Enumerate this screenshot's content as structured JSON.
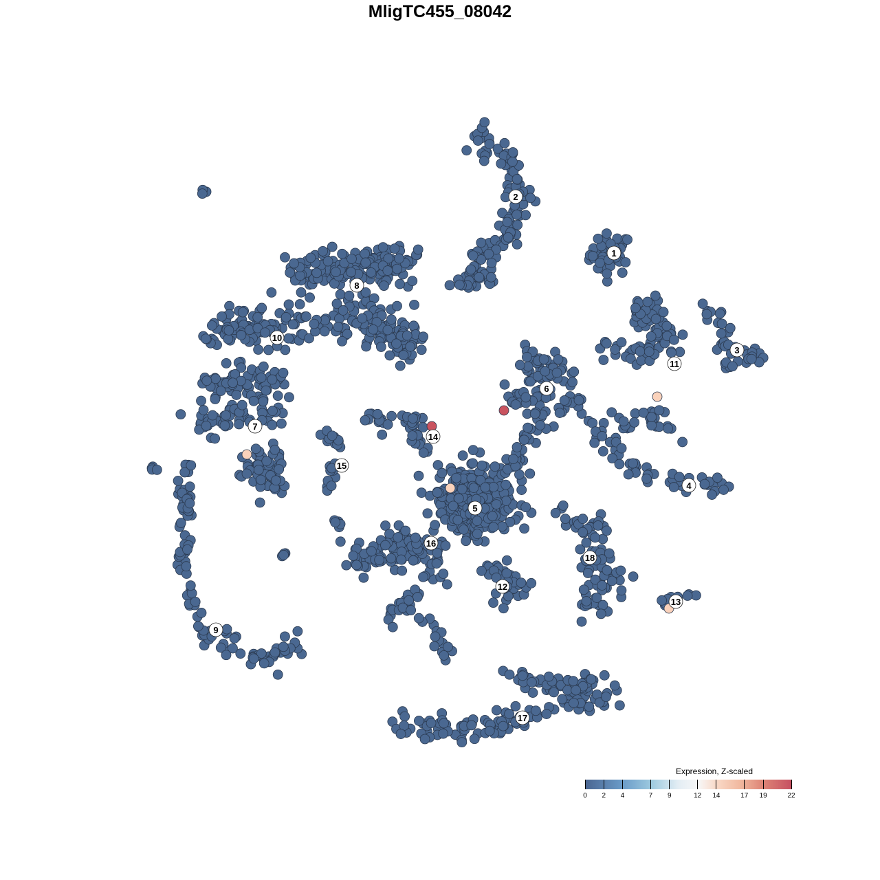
{
  "chart_data": {
    "type": "scatter",
    "title": "MligTC455_08042",
    "xlabel": "",
    "ylabel": "",
    "grid": false,
    "axes_visible": false,
    "base_color": "#4a6891",
    "outline_color": "#2b3a50",
    "colorbar": {
      "title": "Expression, Z-scaled",
      "ticks": [
        0,
        2,
        4,
        7,
        9,
        12,
        14,
        17,
        19,
        22
      ],
      "range": [
        0,
        22
      ],
      "colors": [
        "#4a6591",
        "#6a9bc8",
        "#9cc9df",
        "#e3edf4",
        "#f7f7f7",
        "#f9d8c6",
        "#de8576",
        "#c65062"
      ],
      "placement": "bottom-right"
    },
    "clusters": [
      {
        "label": "1",
        "label_pos": [
          25.3,
          27.2
        ],
        "shapes": [
          {
            "path": [
              [
                24.8,
                27
              ]
            ],
            "spread": 2.5,
            "n": 45
          }
        ]
      },
      {
        "label": "2",
        "label_pos": [
          11,
          35.4
        ],
        "shapes": [
          {
            "path": [
              [
                5,
                44.5
              ],
              [
                10,
                41
              ],
              [
                12,
                35
              ],
              [
                10,
                30
              ],
              [
                6,
                26
              ],
              [
                5,
                23
              ]
            ],
            "spread": 1.6,
            "n": 120
          },
          {
            "path": [
              [
                2,
                22.5
              ],
              [
                7.5,
                23.5
              ]
            ],
            "spread": 0.8,
            "n": 15
          }
        ]
      },
      {
        "label": "3",
        "label_pos": [
          43.2,
          13.1
        ],
        "shapes": [
          {
            "path": [
              [
                38.5,
                19.5
              ],
              [
                41,
                17
              ],
              [
                42,
                13
              ],
              [
                47,
                12
              ]
            ],
            "spread": 1,
            "n": 35
          },
          {
            "path": [
              [
                41,
                10.5
              ],
              [
                46,
                12
              ]
            ],
            "spread": 0.8,
            "n": 10
          }
        ]
      },
      {
        "label": "4",
        "label_pos": [
          36.2,
          -6.6
        ],
        "shapes": [
          {
            "path": [
              [
                21.5,
                3.5
              ],
              [
                24,
                0
              ],
              [
                28,
                -4
              ],
              [
                34,
                -6
              ],
              [
                42,
                -7
              ]
            ],
            "spread": 1,
            "n": 55
          }
        ]
      },
      {
        "label": "5",
        "label_pos": [
          5.1,
          -9.9
        ],
        "shapes": [
          {
            "path": [
              [
                5,
                -9
              ]
            ],
            "spread": 4.5,
            "n": 320
          },
          {
            "path": [
              [
                10,
                -4
              ],
              [
                15,
                4
              ]
            ],
            "spread": 1.5,
            "n": 35
          }
        ]
      },
      {
        "label": "6",
        "label_pos": [
          15.5,
          7.5
        ],
        "shapes": [
          {
            "path": [
              [
                12,
                12
              ],
              [
                18,
                9
              ]
            ],
            "spread": 2,
            "n": 50
          },
          {
            "path": [
              [
                9,
                6
              ],
              [
                20,
                5
              ]
            ],
            "spread": 1.5,
            "n": 35
          }
        ]
      },
      {
        "label": "7",
        "label_pos": [
          -26.9,
          2
        ],
        "shapes": [
          {
            "path": [
              [
                -25.5,
                -3
              ],
              [
                -25.5,
                -6
              ]
            ],
            "spread": 2.5,
            "n": 70
          }
        ]
      },
      {
        "label": "8",
        "label_pos": [
          -12.1,
          22.5
        ],
        "shapes": [
          {
            "path": [
              [
                -21,
                24
              ],
              [
                -4,
                26
              ]
            ],
            "spread": 2.5,
            "n": 160
          },
          {
            "path": [
              [
                -14,
                19
              ],
              [
                -4,
                14
              ]
            ],
            "spread": 2.5,
            "n": 120
          }
        ]
      },
      {
        "label": "9",
        "label_pos": [
          -32.6,
          -27.6
        ],
        "shapes": [
          {
            "path": [
              [
                -35,
                -27
              ],
              [
                -30,
                -31
              ],
              [
                -24,
                -32
              ],
              [
                -21,
                -28.5
              ]
            ],
            "spread": 1.5,
            "n": 55
          }
        ]
      },
      {
        "label": "10",
        "label_pos": [
          -23.7,
          14.9
        ],
        "shapes": [
          {
            "path": [
              [
                -33,
                15
              ],
              [
                -22,
                17
              ],
              [
                -17,
                16
              ]
            ],
            "spread": 2.5,
            "n": 100
          },
          {
            "path": [
              [
                -34,
                8
              ],
              [
                -24,
                8
              ]
            ],
            "spread": 2.5,
            "n": 70
          },
          {
            "path": [
              [
                -35,
                2
              ],
              [
                -24,
                4
              ]
            ],
            "spread": 1.8,
            "n": 50
          },
          {
            "path": [
              [
                -37,
                -3
              ],
              [
                -37,
                -11
              ],
              [
                -37,
                -21
              ],
              [
                -35,
                -26
              ]
            ],
            "spread": 0.9,
            "n": 60
          }
        ]
      },
      {
        "label": "11",
        "label_pos": [
          34.1,
          11.1
        ],
        "shapes": [
          {
            "path": [
              [
                29,
                20
              ],
              [
                32,
                17
              ],
              [
                32,
                13
              ]
            ],
            "spread": 2,
            "n": 60
          },
          {
            "path": [
              [
                24,
                13.5
              ],
              [
                31,
                12.5
              ]
            ],
            "spread": 1.3,
            "n": 25
          },
          {
            "path": [
              [
                30,
                4
              ],
              [
                35,
                1
              ]
            ],
            "spread": 1.3,
            "n": 20
          },
          {
            "path": [
              [
                27,
                3
              ],
              [
                27,
                2
              ]
            ],
            "spread": 1,
            "n": 8
          }
        ]
      },
      {
        "label": "12",
        "label_pos": [
          9.1,
          -21.3
        ],
        "shapes": [
          {
            "path": [
              [
                6,
                -18
              ],
              [
                12,
                -21
              ],
              [
                8,
                -23.5
              ]
            ],
            "spread": 1.5,
            "n": 40
          }
        ]
      },
      {
        "label": "13",
        "label_pos": [
          34.3,
          -23.5
        ],
        "shapes": [
          {
            "path": [
              [
                31.5,
                -24
              ],
              [
                37,
                -22
              ]
            ],
            "spread": 0.7,
            "n": 10
          }
        ]
      },
      {
        "label": "14",
        "label_pos": [
          -1,
          0.5
        ],
        "shapes": [
          {
            "path": [
              [
                -11,
                2.8
              ],
              [
                -3,
                3
              ],
              [
                -3,
                -1
              ]
            ],
            "spread": 1.3,
            "n": 40
          }
        ]
      },
      {
        "label": "15",
        "label_pos": [
          -14.3,
          -3.7
        ],
        "shapes": [
          {
            "path": [
              [
                -18,
                1.5
              ],
              [
                -14.5,
                -1
              ],
              [
                -16.5,
                -7
              ]
            ],
            "spread": 0.8,
            "n": 25
          }
        ]
      },
      {
        "label": "16",
        "label_pos": [
          -1.3,
          -15
        ],
        "shapes": [
          {
            "path": [
              [
                -12,
                -17
              ],
              [
                -4,
                -15
              ],
              [
                0,
                -19
              ]
            ],
            "spread": 2.2,
            "n": 110
          },
          {
            "path": [
              [
                -4,
                -22
              ],
              [
                -8,
                -27
              ]
            ],
            "spread": 1,
            "n": 20
          },
          {
            "path": [
              [
                -2,
                -26
              ],
              [
                1,
                -31
              ]
            ],
            "spread": 1,
            "n": 15
          }
        ]
      },
      {
        "label": "17",
        "label_pos": [
          12,
          -40.4
        ],
        "shapes": [
          {
            "path": [
              [
                -6,
                -42
              ],
              [
                6,
                -42
              ],
              [
                16,
                -39
              ],
              [
                25,
                -37
              ]
            ],
            "spread": 1.5,
            "n": 110
          },
          {
            "path": [
              [
                10,
                -35
              ],
              [
                24,
                -36
              ]
            ],
            "spread": 1.5,
            "n": 50
          }
        ]
      },
      {
        "label": "18",
        "label_pos": [
          21.8,
          -17.1
        ],
        "shapes": [
          {
            "path": [
              [
                17,
                -11
              ],
              [
                23,
                -13
              ],
              [
                22,
                -19
              ],
              [
                26,
                -20
              ],
              [
                20,
                -25
              ]
            ],
            "spread": 1.8,
            "n": 80
          }
        ]
      }
    ],
    "unlabeled_groups": [
      {
        "path": [
          [
            -35,
            36.5
          ],
          [
            -34,
            36
          ]
        ],
        "spread": 0.4,
        "n": 4
      },
      {
        "path": [
          [
            -42,
            -4.5
          ],
          [
            -41.5,
            -4
          ]
        ],
        "spread": 0.4,
        "n": 4
      },
      {
        "path": [
          [
            -23,
            -16.5
          ]
        ],
        "spread": 0.4,
        "n": 4
      },
      {
        "path": [
          [
            -15,
            -12
          ]
        ],
        "spread": 0.5,
        "n": 5
      }
    ],
    "highlighted_points": [
      {
        "x": -28.1,
        "y": -2.1,
        "value": 14
      },
      {
        "x": 1.5,
        "y": -7,
        "value": 14
      },
      {
        "x": 31.6,
        "y": 6.3,
        "value": 14
      },
      {
        "x": 33.3,
        "y": -24.5,
        "value": 14
      },
      {
        "x": -1.2,
        "y": 2,
        "value": 21
      },
      {
        "x": 9.3,
        "y": 4.3,
        "value": 21
      }
    ]
  }
}
